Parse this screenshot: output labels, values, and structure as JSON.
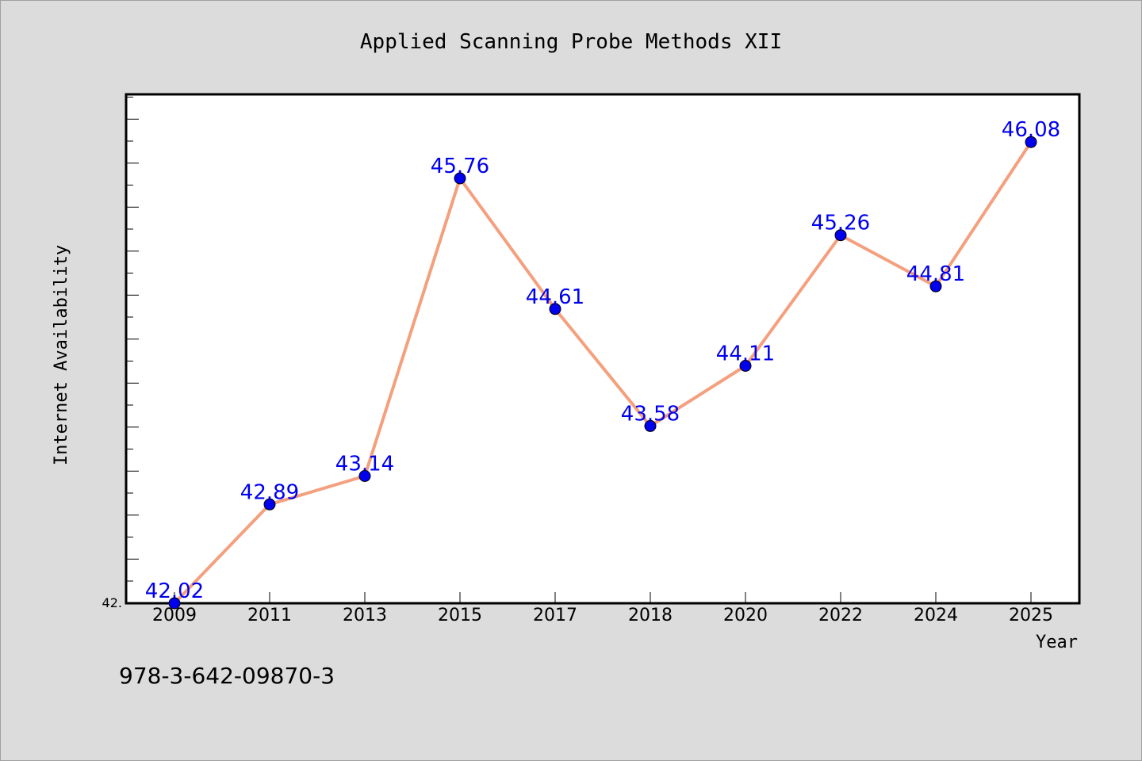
{
  "footer": {
    "isbn": "978-3-642-09870-3"
  },
  "chart_data": {
    "type": "line",
    "title": "Applied Scanning Probe Methods XII",
    "xlabel": "Year",
    "ylabel": "Internet Availability",
    "categories": [
      "2009",
      "2011",
      "2013",
      "2015",
      "2017",
      "2018",
      "2020",
      "2022",
      "2024",
      "2025"
    ],
    "series": [
      {
        "values": [
          42.02,
          42.89,
          43.14,
          45.76,
          44.61,
          43.58,
          44.11,
          45.26,
          44.81,
          46.08
        ],
        "data_labels": [
          "42.02",
          "42.89",
          "43.14",
          "45.76",
          "44.61",
          "43.58",
          "44.11",
          "45.26",
          "44.81",
          "46.08"
        ],
        "line_color": "#f4a07e",
        "marker_color": "#0000ee"
      }
    ],
    "ylim": [
      42.02,
      46.5
    ],
    "ytick_labels": [
      "42."
    ],
    "grid": false,
    "legend": "none",
    "colors": {
      "background": "#dcdcdc",
      "plot_background": "#ffffff",
      "label_color": "#0000ee"
    }
  }
}
